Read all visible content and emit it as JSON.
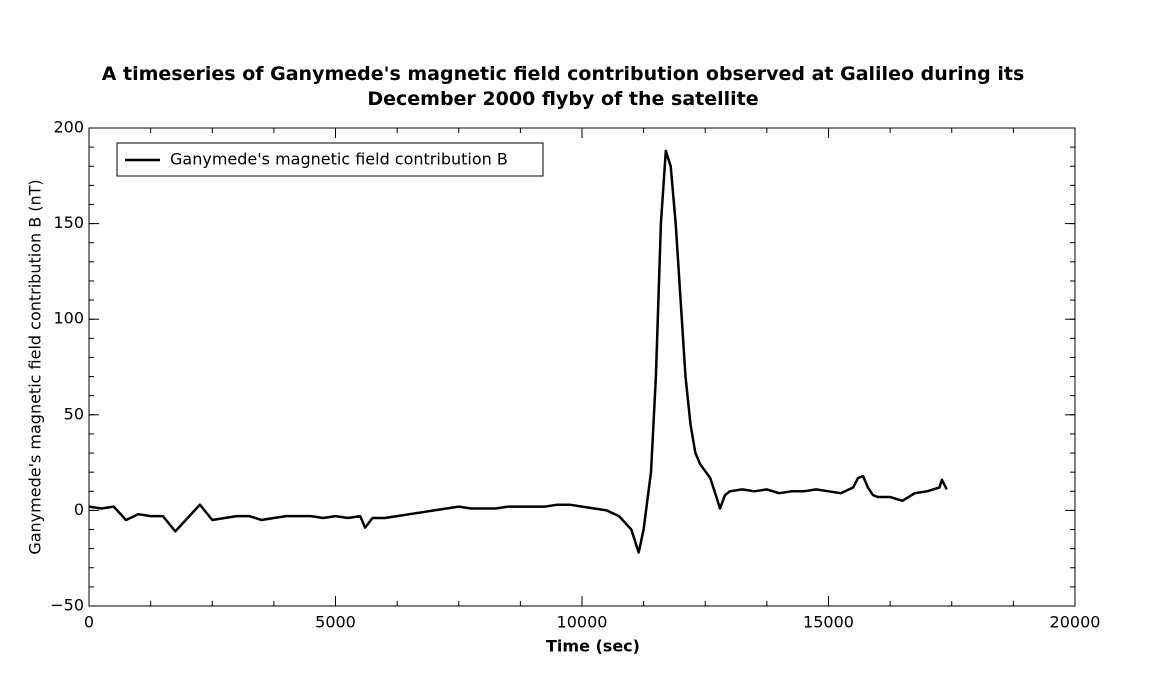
{
  "chart_data": {
    "type": "line",
    "title": "A timeseries of Ganymede's magnetic field contribution observed at Galileo during its December 2000 flyby of the satellite",
    "x_label": "Time (sec)",
    "y_label": "Ganymede's magnetic field contribution B (nT)",
    "xlim": [
      0,
      20000
    ],
    "xticks": [
      0,
      5000,
      10000,
      15000,
      20000
    ],
    "x_minor_step": 1250,
    "ylim": [
      -50,
      200
    ],
    "yticks": [
      {
        "value": -50,
        "label": "−50"
      },
      0,
      50,
      100,
      150,
      200
    ],
    "y_minor_step": 10,
    "grid": false,
    "legend": "upper left",
    "x": [
      0,
      250,
      500,
      750,
      1000,
      1250,
      1500,
      1750,
      2000,
      2250,
      2500,
      2750,
      3000,
      3250,
      3500,
      3750,
      4000,
      4250,
      4500,
      4750,
      5000,
      5250,
      5500,
      5600,
      5750,
      6000,
      6250,
      6500,
      6750,
      7000,
      7250,
      7500,
      7750,
      8000,
      8250,
      8500,
      8750,
      9000,
      9250,
      9500,
      9750,
      10000,
      10250,
      10500,
      10750,
      11000,
      11150,
      11250,
      11400,
      11500,
      11600,
      11700,
      11800,
      11900,
      12000,
      12100,
      12200,
      12300,
      12400,
      12600,
      12750,
      12800,
      12900,
      13000,
      13250,
      13500,
      13750,
      14000,
      14250,
      14500,
      14750,
      15000,
      15250,
      15500,
      15600,
      15700,
      15800,
      15900,
      16000,
      16250,
      16500,
      16750,
      17000,
      17250,
      17300,
      17400
    ],
    "series": [
      {
        "name": "Ganymede's magnetic field contribution B",
        "color": "#000000",
        "values": [
          2,
          1,
          2,
          -5,
          -2,
          -3,
          -3,
          -11,
          -4,
          3,
          -5,
          -4,
          -3,
          -3,
          -5,
          -4,
          -3,
          -3,
          -3,
          -4,
          -3,
          -4,
          -3,
          -9,
          -4,
          -4,
          -3,
          -2,
          -1,
          0,
          1,
          2,
          1,
          1,
          1,
          2,
          2,
          2,
          2,
          3,
          3,
          2,
          1,
          0,
          -3,
          -10,
          -22,
          -10,
          20,
          70,
          150,
          188,
          180,
          150,
          110,
          70,
          45,
          30,
          24,
          17,
          5,
          1,
          8,
          10,
          11,
          10,
          11,
          9,
          10,
          10,
          11,
          10,
          9,
          12,
          17,
          18,
          12,
          8,
          7,
          7,
          5,
          9,
          10,
          12,
          16,
          11
        ]
      }
    ]
  }
}
